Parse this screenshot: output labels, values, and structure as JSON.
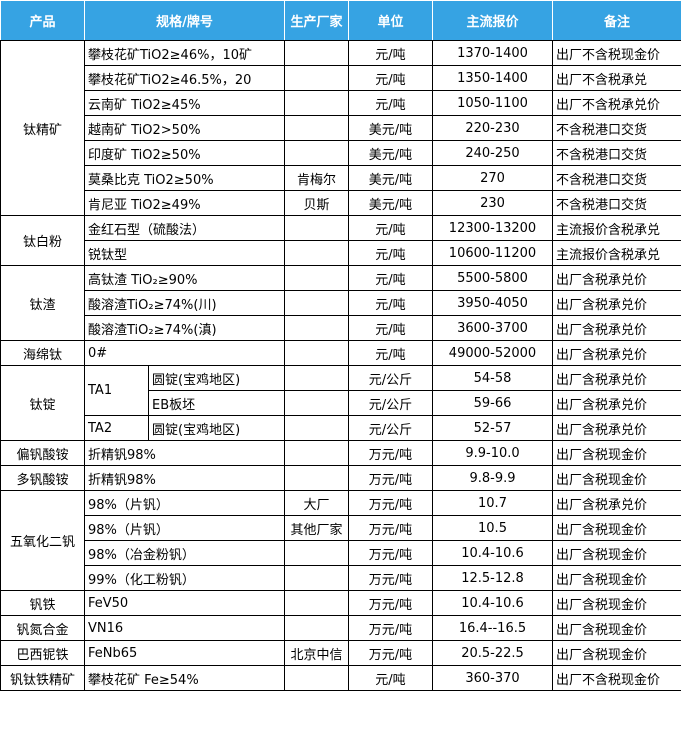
{
  "table": {
    "header": [
      "产品",
      "规格/牌号",
      "生产厂家",
      "单位",
      "主流报价",
      "备注"
    ],
    "groups": [
      {
        "product": "钛精矿",
        "rows": [
          {
            "spec": "攀枝花矿TiO2≥46%，10矿",
            "unit": "元/吨",
            "price": "1370-1400",
            "note": "出厂不含税现金价"
          },
          {
            "spec": "攀枝花矿TiO2≥46.5%，20",
            "unit": "元/吨",
            "price": "1350-1400",
            "note": "出厂不含税承兑"
          },
          {
            "spec": "云南矿 TiO2≥45%",
            "unit": "元/吨",
            "price": "1050-1100",
            "note": "出厂不含税承兑价"
          },
          {
            "spec": "越南矿 TiO2>50%",
            "unit": "美元/吨",
            "price": "220-230",
            "note": "不含税港口交货"
          },
          {
            "spec": "印度矿 TiO2≥50%",
            "unit": "美元/吨",
            "price": "240-250",
            "note": "不含税港口交货"
          },
          {
            "spec": "莫桑比克 TiO2≥50%",
            "maker": "肯梅尔",
            "unit": "美元/吨",
            "price": "270",
            "note": "不含税港口交货"
          },
          {
            "spec": "肯尼亚 TiO2≥49%",
            "maker": "贝斯",
            "unit": "美元/吨",
            "price": "230",
            "note": "不含税港口交货"
          }
        ]
      },
      {
        "product": "钛白粉",
        "rows": [
          {
            "spec": "金红石型（硫酸法）",
            "unit": "元/吨",
            "price": "12300-13200",
            "note": "主流报价含税承兑"
          },
          {
            "spec": "锐钛型",
            "unit": "元/吨",
            "price": "10600-11200",
            "note": "主流报价含税承兑"
          }
        ]
      },
      {
        "product": "钛渣",
        "rows": [
          {
            "spec": "高钛渣 TiO₂≥90%",
            "unit": "元/吨",
            "price": "5500-5800",
            "note": "出厂含税承兑价"
          },
          {
            "spec": "酸溶渣TiO₂≥74%(川)",
            "unit": "元/吨",
            "price": "3950-4050",
            "note": "出厂含税承兑价"
          },
          {
            "spec": "酸溶渣TiO₂≥74%(滇)",
            "unit": "元/吨",
            "price": "3600-3700",
            "note": "出厂含税承兑价"
          }
        ]
      },
      {
        "product": "海绵钛",
        "rows": [
          {
            "spec": "0#",
            "unit": "元/吨",
            "price": "49000-52000",
            "note": "出厂含税承兑价"
          }
        ]
      },
      {
        "product": "钛锭",
        "grades": [
          {
            "grade": "TA1",
            "rows": [
              {
                "spec": "圆锭(宝鸡地区)",
                "unit": "元/公斤",
                "price": "54-58",
                "note": "出厂含税承兑价"
              },
              {
                "spec": "EB板坯",
                "unit": "元/公斤",
                "price": "59-66",
                "note": "出厂含税承兑价"
              }
            ]
          },
          {
            "grade": "TA2",
            "rows": [
              {
                "spec": "圆锭(宝鸡地区)",
                "unit": "元/公斤",
                "price": "52-57",
                "note": "出厂含税承兑价"
              }
            ]
          }
        ]
      },
      {
        "product": "偏钒酸铵",
        "rows": [
          {
            "spec": "折精钒98%",
            "unit": "万元/吨",
            "price": "9.9-10.0",
            "note": "出厂含税现金价"
          }
        ]
      },
      {
        "product": "多钒酸铵",
        "rows": [
          {
            "spec": "折精钒98%",
            "unit": "万元/吨",
            "price": "9.8-9.9",
            "note": "出厂含税现金价"
          }
        ]
      },
      {
        "product": "五氧化二钒",
        "rows": [
          {
            "spec": "98%（片钒）",
            "maker": "大厂",
            "unit": "万元/吨",
            "price": "10.7",
            "note": "出厂含税承兑价"
          },
          {
            "spec": "98%（片钒）",
            "maker": "其他厂家",
            "unit": "万元/吨",
            "price": "10.5",
            "note": "出厂含税现金价"
          },
          {
            "spec": "98%（冶金粉钒）",
            "unit": "万元/吨",
            "price": "10.4-10.6",
            "note": "出厂含税现金价"
          },
          {
            "spec": "99%（化工粉钒）",
            "unit": "万元/吨",
            "price": "12.5-12.8",
            "note": "出厂含税现金价"
          }
        ]
      },
      {
        "product": "钒铁",
        "rows": [
          {
            "spec": "FeV50",
            "unit": "万元/吨",
            "price": "10.4-10.6",
            "note": "出厂含税现金价"
          }
        ]
      },
      {
        "product": "钒氮合金",
        "rows": [
          {
            "spec": "VN16",
            "unit": "万元/吨",
            "price": "16.4--16.5",
            "note": "出厂含税现金价"
          }
        ]
      },
      {
        "product": "巴西铌铁",
        "rows": [
          {
            "spec": "FeNb65",
            "maker": "北京中信",
            "unit": "万元/吨",
            "price": "20.5-22.5",
            "note": "出厂含税现金价"
          }
        ]
      },
      {
        "product": "钒钛铁精矿",
        "rows": [
          {
            "spec": "攀枝花矿 Fe≥54%",
            "unit": "元/吨",
            "price": "360-370",
            "note": "出厂不含税现金价"
          }
        ]
      }
    ]
  }
}
